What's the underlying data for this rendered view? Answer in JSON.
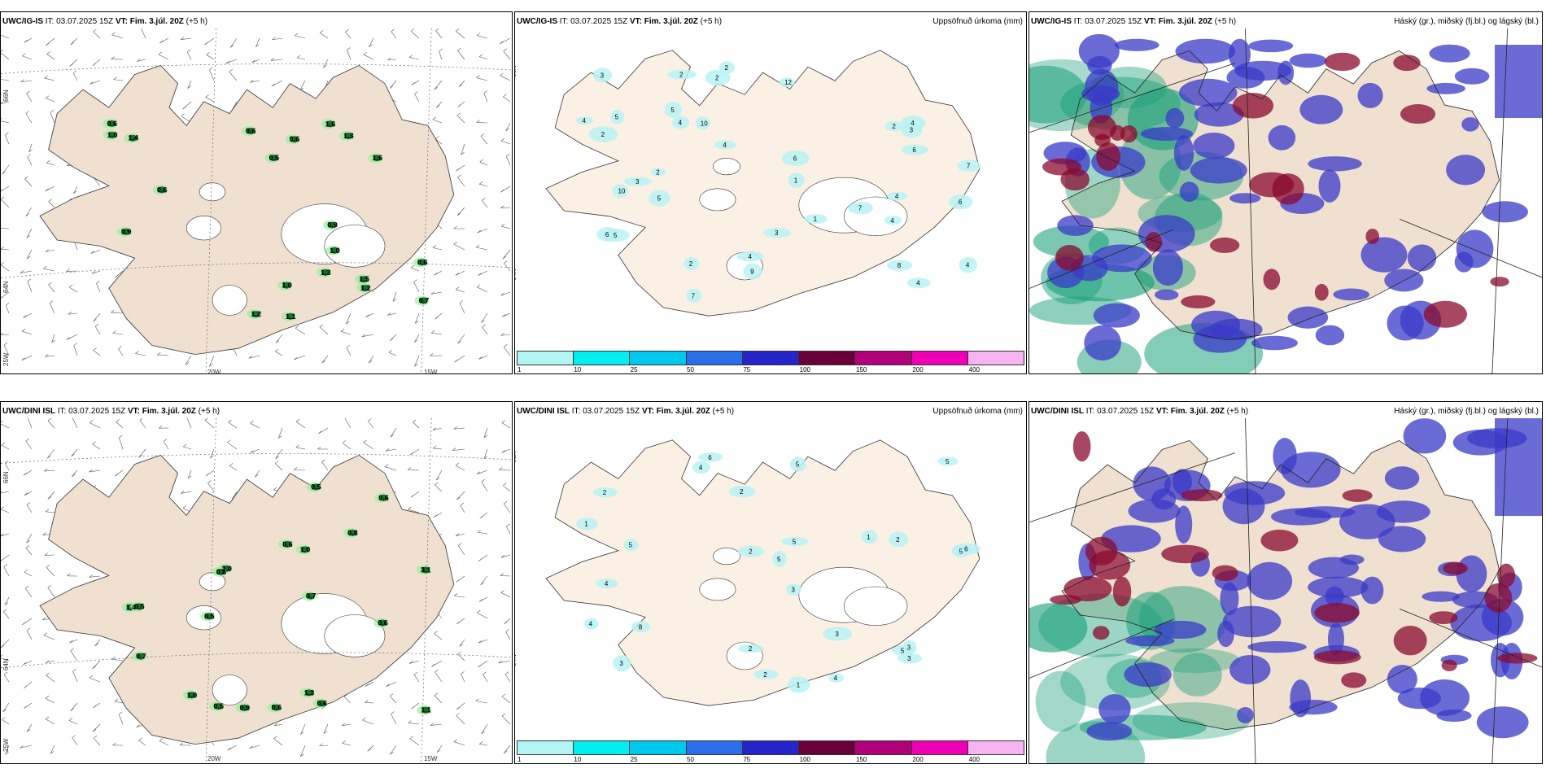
{
  "top": {
    "left": {
      "model": "UWC/IG-IS",
      "it_label": "IT:",
      "it": "03.07.2025 15Z",
      "vt_label": "VT:",
      "vt": "Fim. 3.júl. 20Z",
      "lead": "(+5 h)"
    },
    "middle": {
      "model": "UWC/IG-IS",
      "it_label": "IT:",
      "it": "03.07.2025 15Z",
      "vt_label": "VT:",
      "vt": "Fim. 3.júl. 20Z",
      "lead": "(+5 h)",
      "right_title": "Uppsöfnuð úrkoma (mm)"
    },
    "right": {
      "model": "UWC/IG-IS",
      "it_label": "IT:",
      "it": "03.07.2025 15Z",
      "vt_label": "VT:",
      "vt": "Fim. 3.júl. 20Z",
      "lead": "(+5 h)",
      "right_title": "Háský (gr.), miðský (fj.bl.) og lágský (bl.)"
    }
  },
  "bottom": {
    "left": {
      "model": "UWC/DINI ISL",
      "it_label": "IT:",
      "it": "03.07.2025 15Z",
      "vt_label": "VT:",
      "vt": "Fim. 3.júl. 20Z",
      "lead": "(+5 h)"
    },
    "middle": {
      "model": "UWC/DINI ISL",
      "it_label": "IT:",
      "it": "03.07.2025 15Z",
      "vt_label": "VT:",
      "vt": "Fim. 3.júl. 20Z",
      "lead": "(+5 h)",
      "right_title": "Uppsöfnuð úrkoma (mm)"
    },
    "right": {
      "model": "UWC/DINI ISL",
      "it_label": "IT:",
      "it": "03.07.2025 15Z",
      "vt_label": "VT:",
      "vt": "Fim. 3.júl. 20Z",
      "lead": "(+5 h)",
      "right_title": "Háský (gr.), miðský (fj.bl.) og lágský (bl.)"
    }
  },
  "axis_labels": {
    "lat66": "66N",
    "lat64": "64N",
    "lon25": "25W",
    "lon20": "20W",
    "lon15": "15W"
  },
  "colorbar": {
    "ticks": [
      "1",
      "10",
      "25",
      "50",
      "75",
      "100",
      "150",
      "200",
      "400"
    ],
    "colors": [
      "#b3f5f5",
      "#00eef0",
      "#00c8ec",
      "#2a6ee8",
      "#2424c8",
      "#6a003a",
      "#b0007a",
      "#ee00b4",
      "#f6b4f0"
    ]
  },
  "colors": {
    "land": "#efe0cf",
    "land_mid": "#fbf0e4",
    "coast": "#333333",
    "shower_green": "#1a6e30",
    "light_green": "#9af09a",
    "high_cloud": "#8a0a2e",
    "mid_cloud": "#3a3ac8",
    "low_cloud": "#1aa07a"
  },
  "top_showers": [
    "0.5",
    "1.2",
    "0.6",
    "1.6",
    "1.2",
    "0.6",
    "1.1",
    "1.6",
    "0.6",
    "0.9",
    "1.5",
    "0.6",
    "0.9",
    "1.4",
    "0.7",
    "1.3",
    "0.6",
    "1.3",
    "1.0",
    "1.0",
    "1.0"
  ],
  "bottom_showers": [
    "0.7",
    "0.6",
    "0.6",
    "1.4",
    "0.5",
    "3.1",
    "0.5",
    "1.0",
    "0.8",
    "0.6",
    "0.5",
    "0.6",
    "0.9",
    "0.6",
    "1.3",
    "1.1",
    "0.5",
    "2.0",
    "1.0",
    "0.6",
    "0.7"
  ],
  "top_precip": [
    "6",
    "2",
    "5",
    "6",
    "7",
    "4",
    "5",
    "2",
    "4",
    "4",
    "1",
    "9",
    "7",
    "2",
    "4",
    "3",
    "2",
    "3",
    "5",
    "6",
    "10",
    "1",
    "4",
    "12",
    "4",
    "6",
    "8",
    "4",
    "2",
    "3",
    "3",
    "2",
    "7",
    "2",
    "10",
    "4",
    "5",
    "4"
  ],
  "bottom_precip": [
    "6",
    "5",
    "3",
    "2",
    "4",
    "5",
    "4",
    "1",
    "2",
    "1",
    "5",
    "6",
    "4",
    "2",
    "3",
    "5",
    "8",
    "3",
    "2",
    "5",
    "3",
    "4",
    "2",
    "3",
    "1",
    "2",
    "5",
    "5"
  ]
}
